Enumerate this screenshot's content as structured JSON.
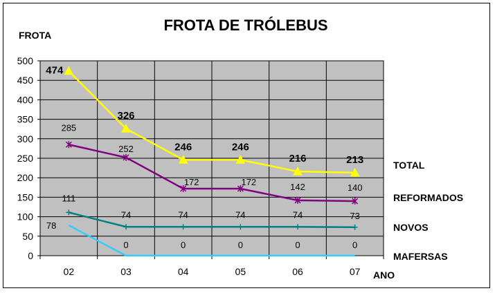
{
  "chart_data": {
    "type": "line",
    "title": "FROTA DE TRÓLEBUS",
    "ylabel": "FROTA",
    "xlabel": "ANO",
    "categories": [
      "02",
      "03",
      "04",
      "05",
      "06",
      "07"
    ],
    "ylim": [
      0,
      500
    ],
    "yticks": [
      0,
      50,
      100,
      150,
      200,
      250,
      300,
      350,
      400,
      450,
      500
    ],
    "grid": true,
    "plot_background": "#c0c0c0",
    "legend_placement": "right",
    "series": [
      {
        "name": "TOTAL",
        "values": [
          474,
          326,
          246,
          246,
          216,
          213
        ],
        "color": "#ffff00",
        "marker": "triangle",
        "label_bold": true
      },
      {
        "name": "REFORMADOS",
        "values": [
          285,
          252,
          172,
          172,
          142,
          140
        ],
        "color": "#800080",
        "marker": "asterisk",
        "label_bold": false
      },
      {
        "name": "NOVOS",
        "values": [
          111,
          74,
          74,
          74,
          74,
          73
        ],
        "color": "#008080",
        "marker": "plus",
        "label_bold": false
      },
      {
        "name": "MAFERSAS",
        "values": [
          78,
          0,
          0,
          0,
          0,
          0
        ],
        "color": "#33ccff",
        "marker": "none",
        "label_bold": false
      }
    ]
  }
}
